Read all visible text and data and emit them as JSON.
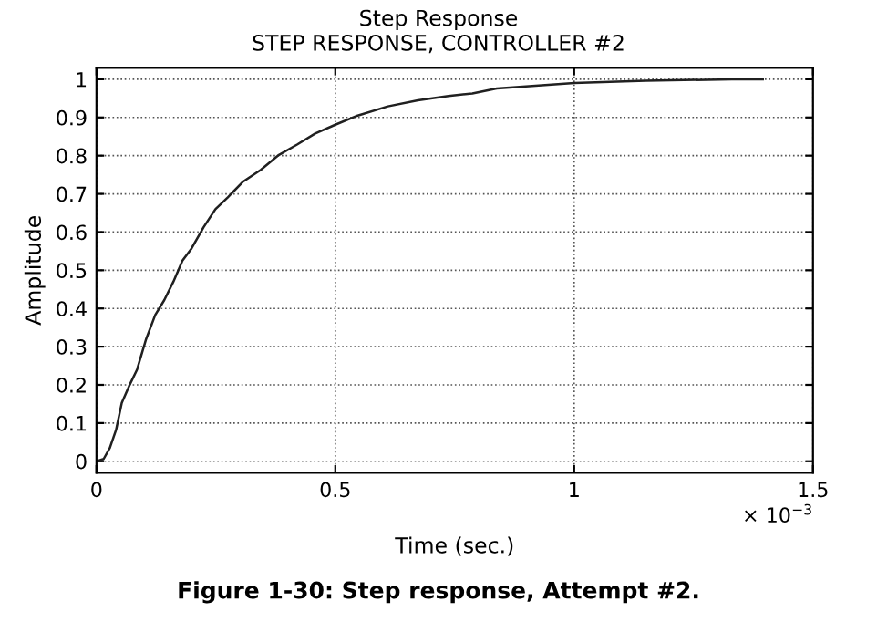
{
  "chart_data": {
    "type": "line",
    "title": "Step Response",
    "subtitle": "STEP RESPONSE, CONTROLLER #2",
    "xlabel": "Time (sec.)",
    "ylabel": "Amplitude",
    "annotations": [
      "× 10$^{−3}$",
      "Figure 1-30: Step response, Attempt #2."
    ],
    "series": [
      {
        "color": "#202020",
        "x": [
          0,
          0.015,
          0.028,
          0.041,
          0.053,
          0.068,
          0.085,
          0.104,
          0.123,
          0.142,
          0.161,
          0.18,
          0.199,
          0.224,
          0.249,
          0.275,
          0.306,
          0.344,
          0.382,
          0.42,
          0.458,
          0.5,
          0.547,
          0.61,
          0.673,
          0.737,
          0.787,
          0.838,
          1.0,
          1.15,
          1.33,
          1.395
        ],
        "values": [
          0,
          0.006,
          0.035,
          0.082,
          0.153,
          0.196,
          0.24,
          0.32,
          0.383,
          0.422,
          0.47,
          0.525,
          0.557,
          0.612,
          0.66,
          0.691,
          0.731,
          0.763,
          0.802,
          0.829,
          0.858,
          0.881,
          0.905,
          0.929,
          0.945,
          0.956,
          0.963,
          0.976,
          0.99,
          0.996,
          1.0,
          1.0
        ]
      }
    ],
    "xlim": [
      0,
      1.5
    ],
    "xticks": [
      0,
      0.5,
      1,
      1.5
    ],
    "ylim": [
      -0.03,
      1.03
    ],
    "yticks": [
      0,
      0.1,
      0.2,
      0.3,
      0.4,
      0.5,
      0.6,
      0.7,
      0.8,
      0.9,
      1
    ],
    "grid": true,
    "line_style": "solid"
  }
}
